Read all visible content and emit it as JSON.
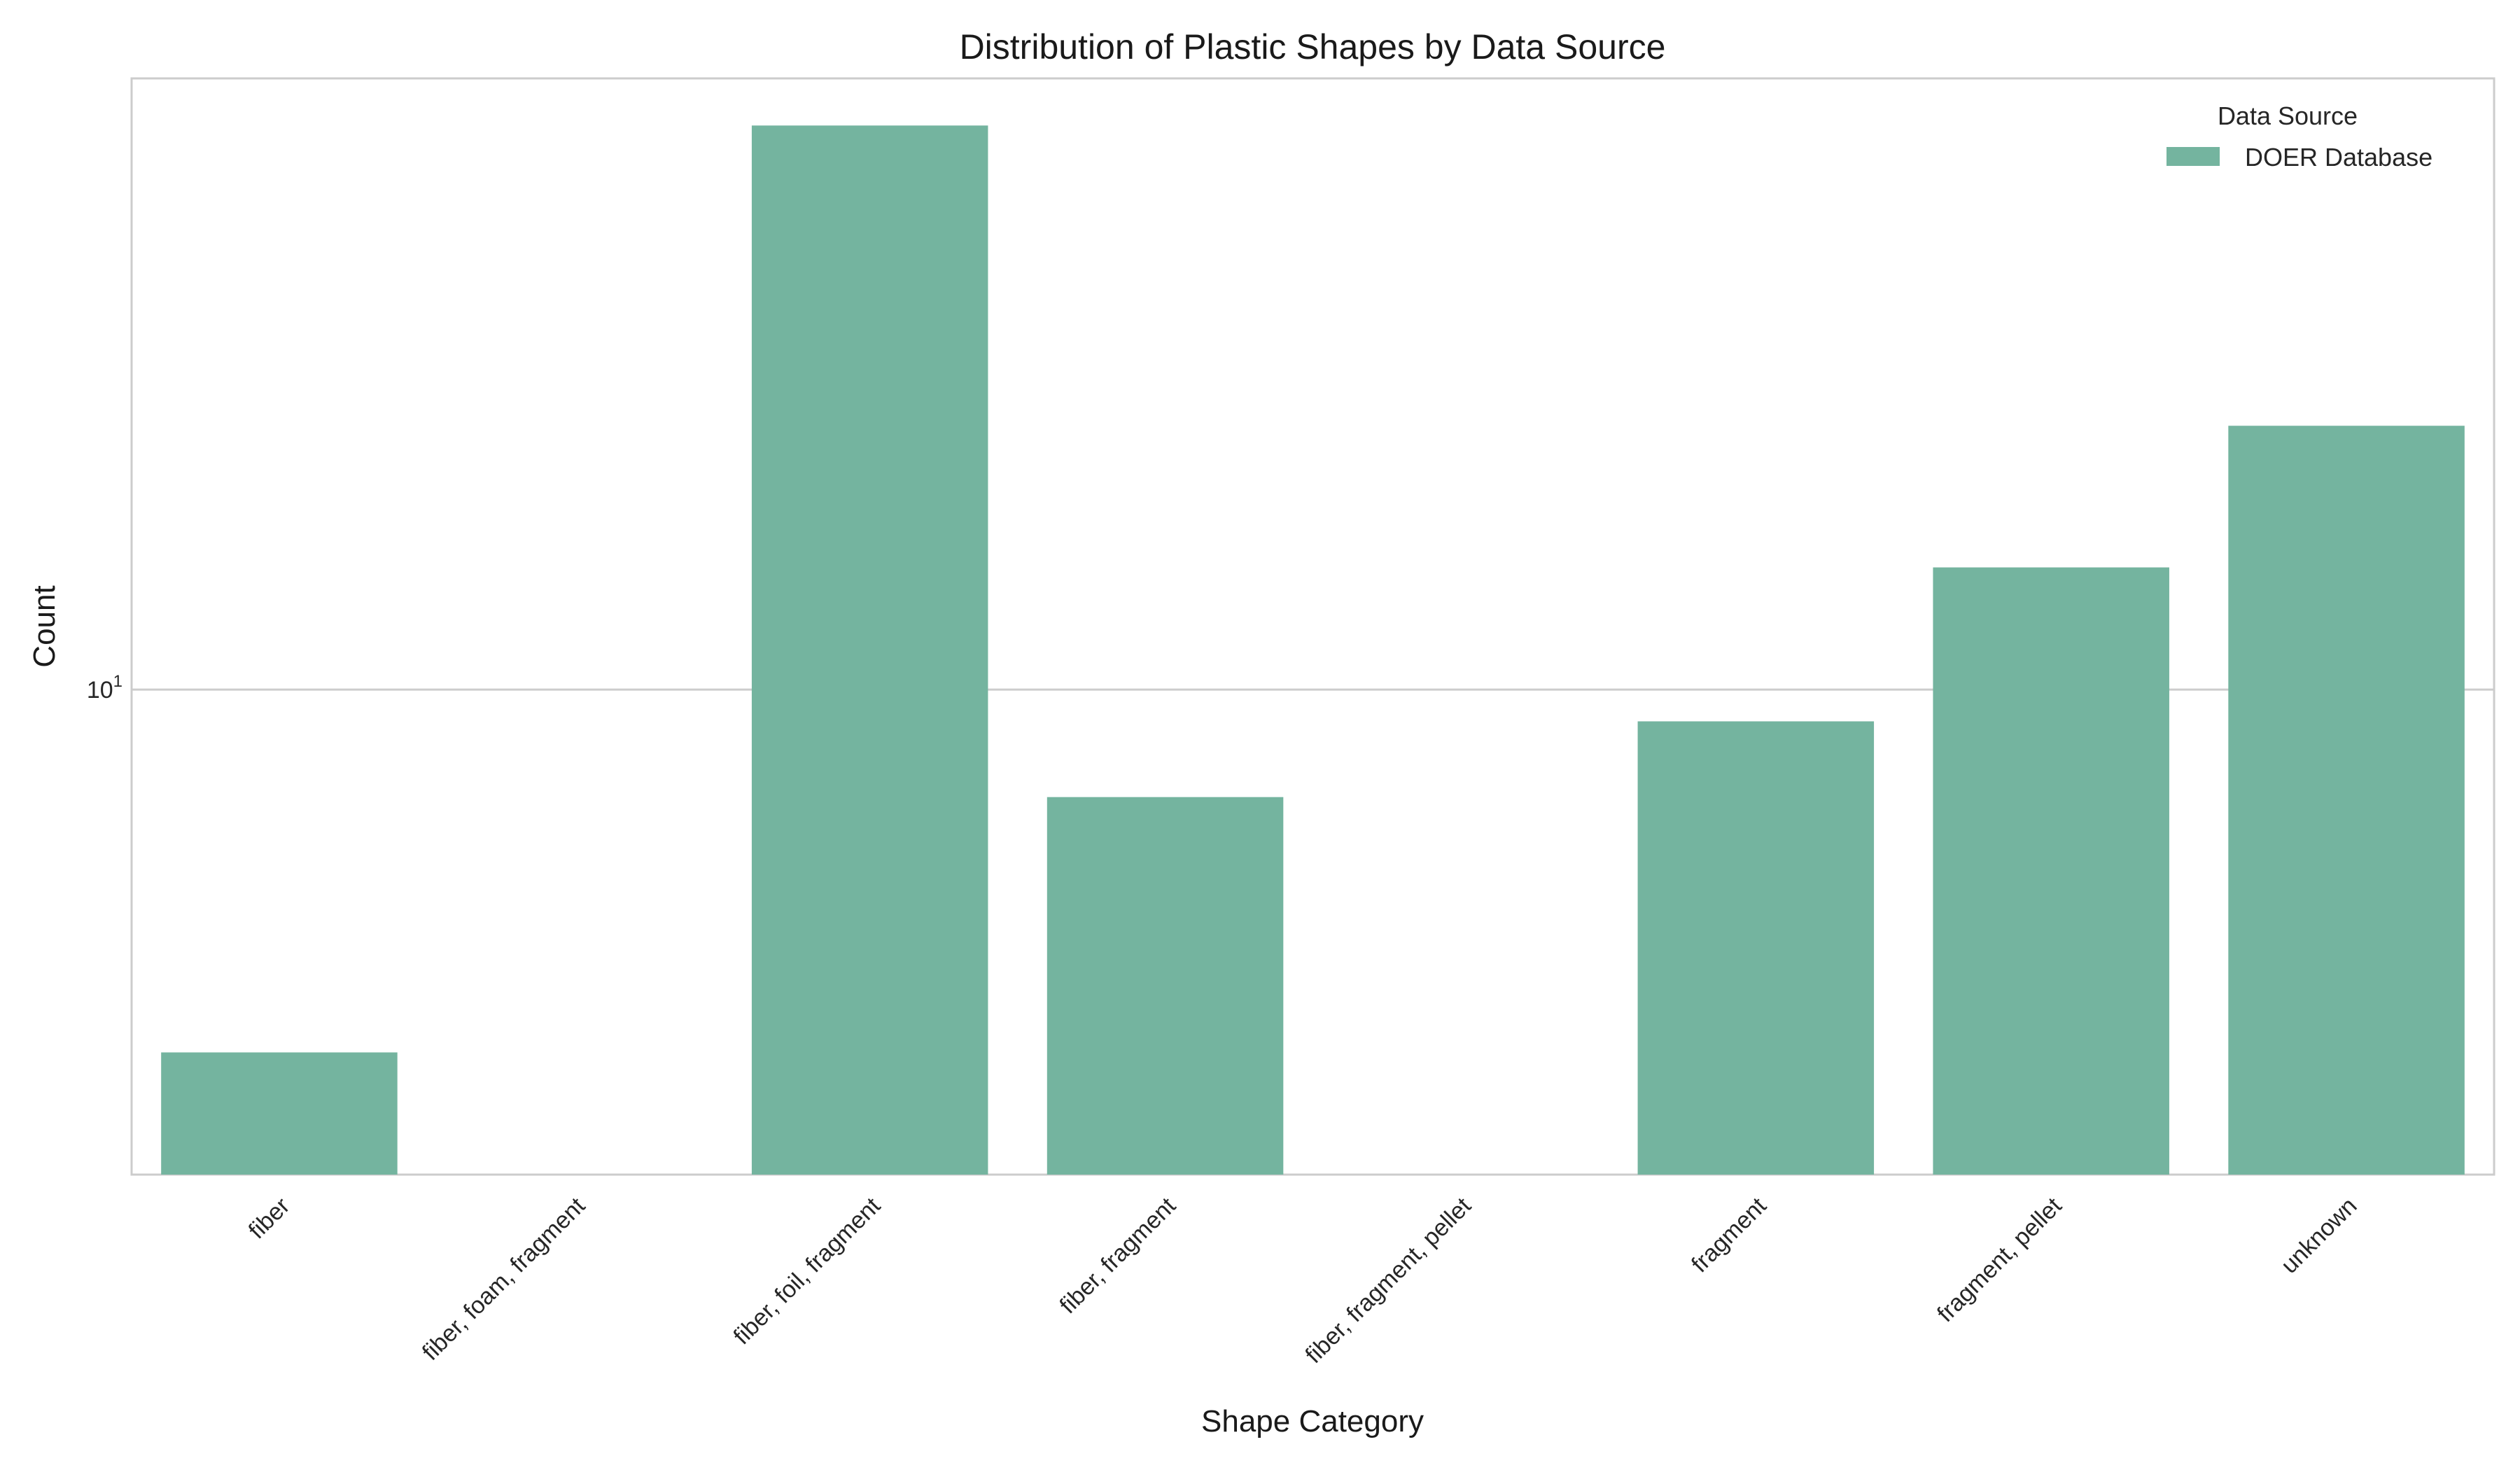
{
  "chart_data": {
    "type": "bar",
    "title": "Distribution of Plastic Shapes by Data Source",
    "xlabel": "Shape Category",
    "ylabel": "Count",
    "yscale": "log",
    "ylim": [
      2,
      76
    ],
    "yticks": [
      {
        "value": 10,
        "label_base": "10",
        "label_exp": "1"
      }
    ],
    "grid": "horizontal",
    "legend": {
      "title": "Data Source",
      "position": "top-right"
    },
    "categories": [
      "fiber",
      "fiber, foam, fragment",
      "fiber, foil, fragment",
      "fiber, fragment",
      "fiber, fragment, pellet",
      "fragment",
      "fragment, pellet",
      "unknown"
    ],
    "series": [
      {
        "name": "DOER Database",
        "color": "#74b49f",
        "values": [
          3,
          2,
          65,
          7,
          2,
          9,
          15,
          24
        ]
      }
    ]
  }
}
